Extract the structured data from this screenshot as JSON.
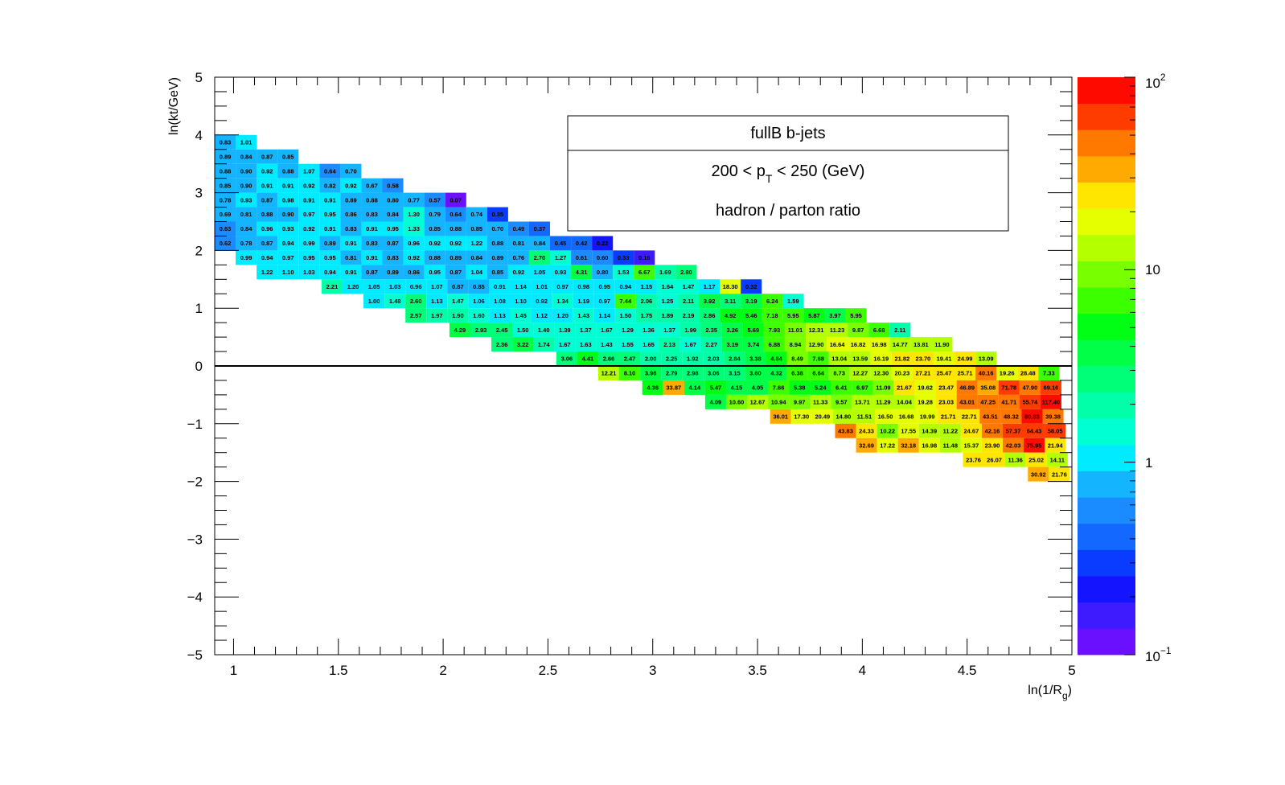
{
  "chart_data": {
    "type": "heatmap",
    "title": "",
    "xlabel": "ln(1/R",
    "xlabel_sub": "g",
    "xlabel_close": ")",
    "ylabel": "ln(kt/GeV)",
    "xlim": [
      0.91,
      5.0
    ],
    "ylim": [
      -5,
      5
    ],
    "x_ticks": [
      "1",
      "1.5",
      "2",
      "2.5",
      "3",
      "3.5",
      "4",
      "4.5",
      "5"
    ],
    "y_ticks": [
      "5",
      "4",
      "3",
      "2",
      "1",
      "0",
      "−1",
      "−2",
      "−3",
      "−4",
      "−5"
    ],
    "colorbar": {
      "scale": "log",
      "range": [
        0.1,
        100
      ],
      "labels": [
        {
          "base": "10",
          "exp": "2"
        },
        {
          "base": "10",
          "exp": ""
        },
        {
          "base": "1",
          "exp": ""
        },
        {
          "base": "10",
          "exp": "−1"
        }
      ]
    },
    "legend": {
      "title": "fullB b-jets",
      "line1_a": "200 < p",
      "line1_sub": "T",
      "line1_b": " < 250 (GeV)",
      "line2": "hadron / parton ratio"
    },
    "grid": false,
    "x_bin_width": 0.1,
    "y_bin_height": 0.25,
    "rows": [
      {
        "y": 3.75,
        "x0": 0.91,
        "values": [
          0.83,
          1.01
        ]
      },
      {
        "y": 3.5,
        "x0": 0.91,
        "values": [
          0.89,
          0.84,
          0.87,
          0.85
        ]
      },
      {
        "y": 3.25,
        "x0": 0.91,
        "values": [
          0.88,
          0.9,
          0.92,
          0.88,
          1.07,
          0.64,
          0.7
        ]
      },
      {
        "y": 3.0,
        "x0": 0.91,
        "values": [
          0.85,
          0.9,
          0.91,
          0.91,
          0.92,
          0.82,
          0.92,
          0.67,
          0.58
        ]
      },
      {
        "y": 2.75,
        "x0": 0.91,
        "values": [
          0.78,
          0.93,
          0.87,
          0.98,
          0.91,
          0.91,
          0.89,
          0.88,
          0.8,
          0.77,
          0.57,
          0.07
        ]
      },
      {
        "y": 2.5,
        "x0": 0.91,
        "values": [
          0.69,
          0.81,
          0.88,
          0.9,
          0.97,
          0.95,
          0.86,
          0.83,
          0.84,
          1.3,
          0.79,
          0.64,
          0.74,
          0.35
        ]
      },
      {
        "y": 2.25,
        "x0": 0.91,
        "values": [
          0.63,
          0.84,
          0.96,
          0.93,
          0.92,
          0.91,
          0.83,
          0.91,
          0.95,
          1.33,
          0.85,
          0.88,
          0.85,
          0.7,
          0.49,
          0.37
        ]
      },
      {
        "y": 2.0,
        "x0": 0.91,
        "values": [
          0.62,
          0.78,
          0.87,
          0.94,
          0.99,
          0.89,
          0.91,
          0.83,
          0.87,
          0.96,
          0.92,
          0.92,
          1.22,
          0.88,
          0.81,
          0.84,
          0.45,
          0.42,
          0.22
        ]
      },
      {
        "y": 1.75,
        "x0": 1.01,
        "values": [
          0.99,
          0.94,
          0.97,
          0.95,
          0.95,
          0.81,
          0.91,
          0.83,
          0.92,
          0.88,
          0.89,
          0.84,
          0.89,
          0.76,
          2.7,
          1.27,
          0.61,
          0.6,
          0.33,
          0.16
        ]
      },
      {
        "y": 1.5,
        "x0": 1.11,
        "values": [
          1.22,
          1.1,
          1.03,
          0.94,
          0.91,
          0.87,
          0.89,
          0.86,
          0.95,
          0.87,
          1.04,
          0.85,
          0.92,
          1.05,
          0.93,
          4.31,
          0.8,
          1.53,
          6.67,
          1.69,
          2.8
        ]
      },
      {
        "y": 1.25,
        "x0": 1.42,
        "values": [
          2.21,
          1.2,
          1.05,
          1.03,
          0.96,
          1.07,
          0.87,
          0.85,
          0.91,
          1.14,
          1.01,
          0.97,
          0.98,
          0.95,
          0.94,
          1.15,
          1.64,
          1.47,
          1.17,
          18.3,
          0.32
        ]
      },
      {
        "y": 1.0,
        "x0": 1.62,
        "values": [
          1.0,
          1.48,
          2.6,
          1.13,
          1.47,
          1.06,
          1.08,
          1.1,
          0.92,
          1.34,
          1.19,
          0.97,
          7.44,
          2.06,
          1.25,
          2.11,
          3.92,
          3.11,
          3.19,
          6.24,
          1.59
        ]
      },
      {
        "y": 0.75,
        "x0": 1.82,
        "values": [
          2.57,
          1.97,
          1.9,
          1.6,
          1.13,
          1.45,
          1.12,
          1.2,
          1.43,
          1.14,
          1.5,
          1.75,
          1.89,
          2.19,
          2.86,
          4.92,
          5.46,
          7.18,
          5.95,
          5.87,
          3.97,
          5.95
        ]
      },
      {
        "y": 0.5,
        "x0": 2.03,
        "values": [
          4.29,
          2.93,
          2.45,
          1.5,
          1.4,
          1.39,
          1.37,
          1.67,
          1.29,
          1.36,
          1.37,
          1.99,
          2.35,
          3.26,
          5.69,
          7.93,
          11.01,
          12.31,
          11.23,
          9.87,
          6.68,
          2.11
        ]
      },
      {
        "y": 0.25,
        "x0": 2.23,
        "values": [
          2.36,
          3.22,
          1.74,
          1.67,
          1.63,
          1.43,
          1.55,
          1.65,
          2.13,
          1.67,
          2.27,
          3.19,
          3.74,
          6.88,
          8.94,
          12.9,
          16.64,
          16.82,
          16.98,
          14.77,
          13.81,
          11.9
        ]
      },
      {
        "y": 0.0,
        "x0": 2.54,
        "values": [
          3.06,
          4.41,
          2.66,
          2.47,
          2.0,
          2.25,
          1.92,
          2.03,
          2.84,
          3.38,
          4.84,
          8.49,
          7.68,
          13.04,
          13.59,
          16.19,
          21.82,
          23.7,
          19.41,
          24.99,
          13.09
        ]
      },
      {
        "y": -0.25,
        "x0": 2.74,
        "values": [
          12.21,
          8.1,
          3.96,
          2.79,
          2.98,
          3.06,
          3.15,
          3.6,
          4.32,
          6.38,
          6.64,
          8.73,
          12.27,
          12.3,
          20.23,
          27.21,
          25.47,
          25.71,
          40.16,
          19.26,
          28.48,
          7.33
        ]
      },
      {
        "y": -0.5,
        "x0": 2.95,
        "values": [
          4.36,
          33.87,
          4.14,
          5.47,
          4.15,
          4.05,
          7.66,
          5.38,
          5.24,
          6.41,
          6.97,
          11.09,
          21.67,
          19.62,
          23.47,
          46.89,
          35.08,
          71.78,
          47.9,
          69.16
        ]
      },
      {
        "y": -0.75,
        "x0": 3.25,
        "values": [
          4.09,
          10.6,
          12.67,
          10.94,
          9.97,
          11.33,
          9.57,
          13.71,
          11.29,
          14.04,
          19.28,
          23.03,
          43.01,
          47.25,
          41.71,
          55.74,
          117.4
        ]
      },
      {
        "y": -1.0,
        "x0": 3.56,
        "values": [
          36.01,
          17.3,
          20.49,
          14.8,
          11.51,
          16.5,
          16.68,
          19.99,
          21.71,
          22.71,
          43.51,
          48.32,
          80.83,
          39.38
        ]
      },
      {
        "y": -1.25,
        "x0": 3.87,
        "values": [
          43.83,
          24.33,
          10.22,
          17.55,
          14.39,
          11.22,
          24.67,
          42.16,
          57.37,
          64.43,
          58.05
        ]
      },
      {
        "y": -1.5,
        "x0": 3.97,
        "values": [
          32.69,
          17.22,
          32.18,
          16.98,
          11.48,
          15.37,
          23.9,
          42.03,
          75.95,
          21.94
        ]
      },
      {
        "y": -1.75,
        "x0": 4.48,
        "values": [
          23.76,
          26.07,
          11.36,
          25.02,
          14.11
        ]
      },
      {
        "y": -2.0,
        "x0": 4.79,
        "values": [
          30.92,
          21.76
        ]
      }
    ]
  }
}
